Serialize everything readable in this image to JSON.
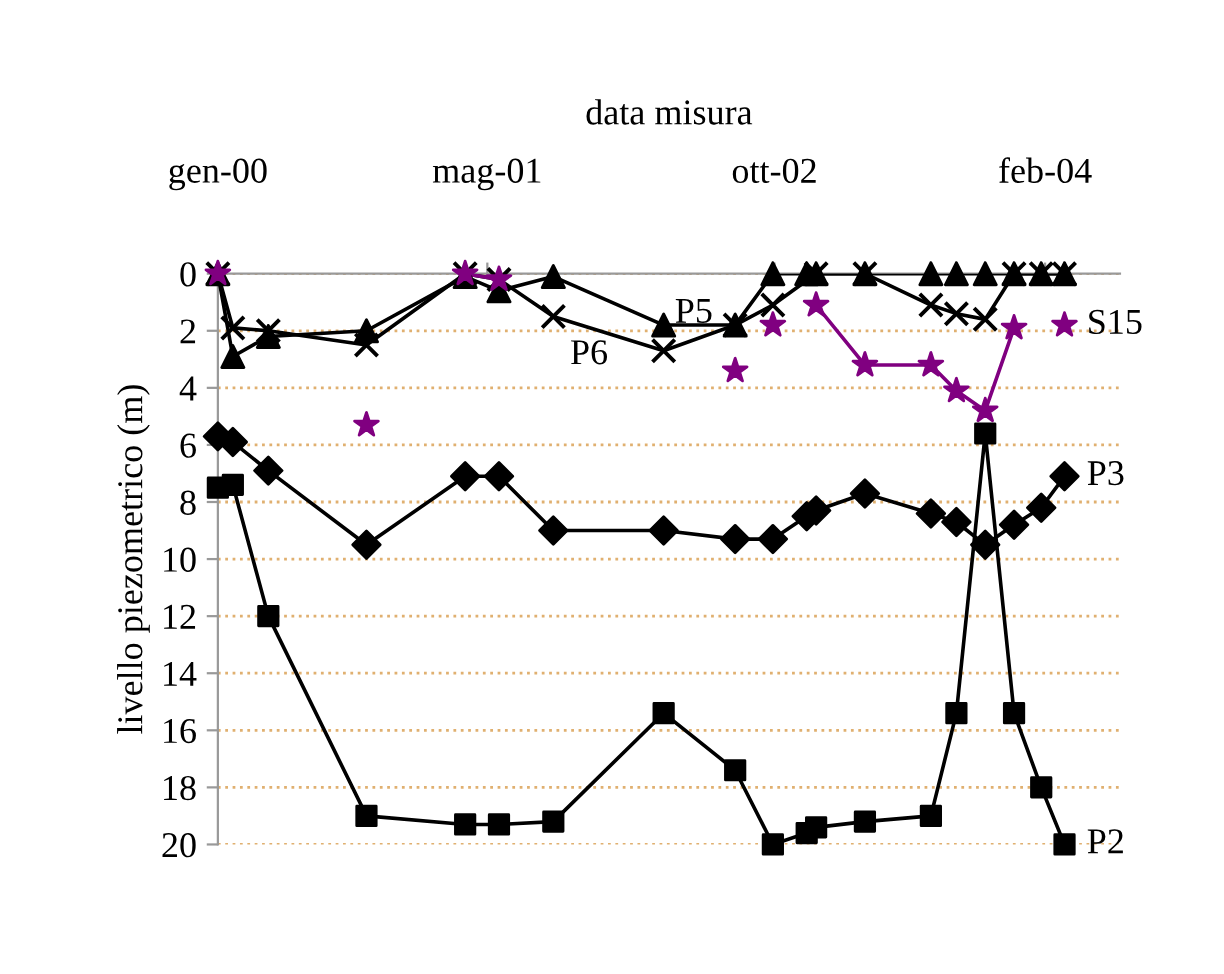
{
  "chart_data": {
    "type": "line",
    "xlabel": "data misura",
    "ylabel": "livello piezometrico (m)",
    "xlim": [
      "2000-01-01",
      "2004-06-15"
    ],
    "xticks": [
      {
        "value": "2000-01-01",
        "label": "gen-00"
      },
      {
        "value": "2001-05-01",
        "label": "mag-01"
      },
      {
        "value": "2002-10-01",
        "label": "ott-02"
      },
      {
        "value": "2004-02-01",
        "label": "feb-04"
      }
    ],
    "ylim": [
      20,
      0
    ],
    "yticks": [
      0,
      2,
      4,
      6,
      8,
      10,
      12,
      14,
      16,
      18,
      20
    ],
    "grid": "y",
    "line_style": "solid",
    "series": [
      {
        "name": "P5",
        "color": "#000000",
        "marker": "triangle",
        "x": [
          "2000-01-01",
          "2000-01-28",
          "2000-04-01",
          "2000-09-25",
          "2001-03-22",
          "2001-05-22",
          "2001-08-28",
          "2002-03-15",
          "2002-07-22",
          "2002-09-28",
          "2002-11-28",
          "2002-12-15",
          "2003-03-13",
          "2003-07-10",
          "2003-08-25",
          "2003-10-16",
          "2003-12-07",
          "2004-01-25",
          "2004-03-07"
        ],
        "values": [
          0,
          2.9,
          2.2,
          2.0,
          0.1,
          0.6,
          0.1,
          1.8,
          1.8,
          0,
          0,
          0,
          0,
          0,
          0,
          0,
          0,
          0,
          0
        ]
      },
      {
        "name": "P6",
        "color": "#000000",
        "marker": "cross",
        "x": [
          "2000-01-01",
          "2000-01-28",
          "2000-04-01",
          "2000-09-25",
          "2001-03-22",
          "2001-05-22",
          "2001-08-28",
          "2002-03-15",
          "2002-07-22",
          "2002-09-28",
          "2002-12-15",
          "2003-03-13",
          "2003-07-10",
          "2003-08-25",
          "2003-10-16",
          "2003-12-07",
          "2004-01-25",
          "2004-03-07"
        ],
        "values": [
          0,
          1.9,
          2.0,
          2.5,
          0,
          0.2,
          1.5,
          2.7,
          1.8,
          1.1,
          0,
          0,
          1.1,
          1.4,
          1.6,
          0,
          0,
          0
        ]
      },
      {
        "name": "S15",
        "color": "#800080",
        "marker": "star",
        "x": [
          "2000-01-01",
          "2000-05-01",
          "2000-09-25",
          "2000-12-01",
          "2001-03-22",
          "2001-05-22",
          "2001-12-01",
          "2002-07-22",
          "2002-08-20",
          "2002-09-28",
          "2002-11-01",
          "2002-12-15",
          "2003-03-13",
          "2003-07-10",
          "2003-08-25",
          "2003-10-16",
          "2003-12-07",
          "2004-02-01",
          "2004-03-07"
        ],
        "values": [
          0,
          null,
          5.3,
          null,
          0,
          0.2,
          null,
          3.4,
          null,
          1.8,
          null,
          1.1,
          3.2,
          3.2,
          4.1,
          4.8,
          1.9,
          null,
          1.8
        ]
      },
      {
        "name": "P3",
        "color": "#000000",
        "marker": "diamond",
        "x": [
          "2000-01-01",
          "2000-01-28",
          "2000-04-01",
          "2000-09-25",
          "2001-03-22",
          "2001-05-22",
          "2001-08-28",
          "2002-03-15",
          "2002-07-22",
          "2002-09-28",
          "2002-11-28",
          "2002-12-15",
          "2003-03-13",
          "2003-07-10",
          "2003-08-25",
          "2003-10-16",
          "2003-12-07",
          "2004-01-25",
          "2004-03-07"
        ],
        "values": [
          5.7,
          5.9,
          6.9,
          9.5,
          7.1,
          7.1,
          9.0,
          9.0,
          9.3,
          9.3,
          8.5,
          8.3,
          7.7,
          8.4,
          8.7,
          9.5,
          8.8,
          8.2,
          7.1
        ]
      },
      {
        "name": "P2",
        "color": "#000000",
        "marker": "square",
        "x": [
          "2000-01-01",
          "2000-01-28",
          "2000-04-01",
          "2000-09-25",
          "2001-03-22",
          "2001-05-22",
          "2001-08-28",
          "2002-03-15",
          "2002-07-22",
          "2002-09-28",
          "2002-11-28",
          "2002-12-15",
          "2003-03-13",
          "2003-07-10",
          "2003-08-25",
          "2003-10-16",
          "2003-12-07",
          "2004-01-25",
          "2004-03-07"
        ],
        "values": [
          7.5,
          7.4,
          12,
          19,
          19.3,
          19.3,
          19.2,
          15.4,
          17.4,
          20,
          19.6,
          19.4,
          19.2,
          19,
          15.4,
          5.6,
          15.4,
          18,
          20
        ]
      }
    ]
  }
}
